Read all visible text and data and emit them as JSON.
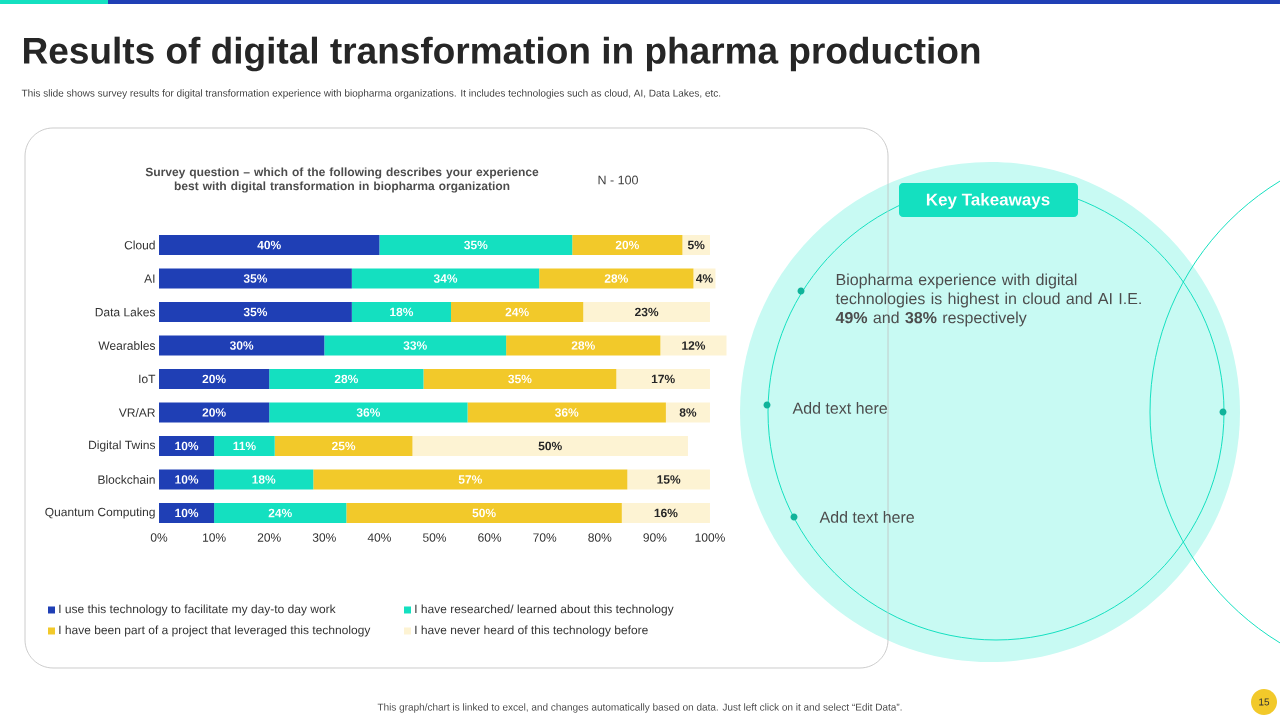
{
  "chart_data": {
    "type": "bar",
    "orientation": "horizontal",
    "stacked": true,
    "title": "Results of digital transformation in pharma production",
    "subtitle": "This slide shows survey results for digital transformation experience with biopharma organizations. It includes technologies such as cloud, AI, Data Lakes, etc.",
    "categories": [
      "Cloud",
      "AI",
      "Data Lakes",
      "Wearables",
      "IoT",
      "VR/AR",
      "Digital Twins",
      "Blockchain",
      "Quantum Computing"
    ],
    "series": [
      {
        "name": "I use this technology to facilitate my day-to day work",
        "color": "#1f3fb5",
        "values": [
          40,
          35,
          35,
          30,
          20,
          20,
          10,
          10,
          10
        ],
        "value_labels": [
          "40%",
          "35%",
          "35%",
          "30%",
          "20%",
          "20%",
          "10%",
          "10%",
          "10%"
        ]
      },
      {
        "name": "I have researched/ learned about this technology",
        "color": "#14e0c0",
        "values": [
          35,
          34,
          18,
          33,
          28,
          36,
          11,
          18,
          24
        ],
        "value_labels": [
          "35%",
          "34%",
          "18%",
          "33%",
          "28%",
          "36%",
          "11%",
          "18%",
          "24%"
        ]
      },
      {
        "name": "I have been part of a project that leveraged this technology",
        "color": "#f2c92a",
        "values": [
          20,
          28,
          24,
          28,
          35,
          36,
          25,
          57,
          50
        ],
        "value_labels": [
          "20%",
          "28%",
          "24%",
          "28%",
          "35%",
          "36%",
          "25%",
          "57%",
          "50%"
        ]
      },
      {
        "name": "I have never heard of this technology before",
        "color": "#fdf3d3",
        "values": [
          5,
          4,
          23,
          12,
          17,
          8,
          50,
          15,
          16
        ],
        "value_labels": [
          "5%",
          "4%",
          "23%",
          "12%",
          "17%",
          "8%",
          "50%",
          "15%",
          "16%"
        ]
      }
    ],
    "xlim": [
      0,
      103
    ],
    "xticks": [
      {
        "value": 0,
        "label": "0%"
      },
      {
        "value": 10,
        "label": "10%"
      },
      {
        "value": 20,
        "label": "20%"
      },
      {
        "value": 30,
        "label": "30%"
      },
      {
        "value": 40,
        "label": "40%"
      },
      {
        "value": 50,
        "label": "50%"
      },
      {
        "value": 60,
        "label": "60%"
      },
      {
        "value": 70,
        "label": "70%"
      },
      {
        "value": 80,
        "label": "80%"
      },
      {
        "value": 90,
        "label": "90%"
      },
      {
        "value": 100,
        "label": "100%"
      }
    ],
    "legend": "bottom",
    "annotations": [
      "Survey question – which of the following describes your experience best with digital transformation in biopharma organization",
      "N - 100",
      "Key Takeaways",
      "Biopharma experience with digital technologies is highest in cloud and AI I.E. **49%** and **38%** respectively",
      "Add text here",
      "Add text here",
      "This graph/chart is linked to excel, and changes automatically based on data. Just left click on it and select “Edit Data”.",
      "15"
    ]
  }
}
